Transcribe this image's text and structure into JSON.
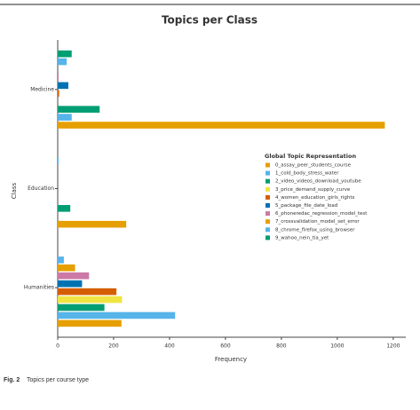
{
  "chart_data": {
    "type": "barh",
    "title": "Topics per Class",
    "xlabel": "Frequency",
    "ylabel": "Class",
    "categories": [
      "Humanities",
      "Education",
      "Medicine"
    ],
    "legend_title": "Global Topic Representation",
    "legend_position": "right",
    "series": [
      {
        "name": "0_assay_peer_students_course",
        "color": "#e69f00",
        "values": [
          228,
          245,
          1170
        ]
      },
      {
        "name": "1_cold_body_stress_water",
        "color": "#56b4e9",
        "values": [
          420,
          0,
          50
        ]
      },
      {
        "name": "2_video_videos_download_youtube",
        "color": "#009e73",
        "values": [
          167,
          45,
          150
        ]
      },
      {
        "name": "3_price_demand_supply_curve",
        "color": "#f0e442",
        "values": [
          230,
          0,
          0
        ]
      },
      {
        "name": "4_women_education_girls_rights",
        "color": "#d55e00",
        "values": [
          210,
          0,
          5
        ]
      },
      {
        "name": "5_package_file_date_load",
        "color": "#0072b2",
        "values": [
          87,
          0,
          38
        ]
      },
      {
        "name": "6_phoneredac_regression_model_test",
        "color": "#cc79a7",
        "values": [
          112,
          0,
          3
        ]
      },
      {
        "name": "7_crossvalidation_model_set_error",
        "color": "#e69f00",
        "values": [
          62,
          0,
          0
        ]
      },
      {
        "name": "8_chrome_firefox_using_browser",
        "color": "#56b4e9",
        "values": [
          22,
          3,
          32
        ]
      },
      {
        "name": "9_wahoo_nein_tia_yet",
        "color": "#009e73",
        "values": [
          0,
          0,
          50
        ]
      }
    ],
    "xlim": [
      0,
      1245
    ],
    "xticks": [
      0,
      200,
      400,
      600,
      800,
      1000,
      1200
    ],
    "grid": false,
    "caption_label": "Fig. 2",
    "caption": "Topics per course type"
  }
}
